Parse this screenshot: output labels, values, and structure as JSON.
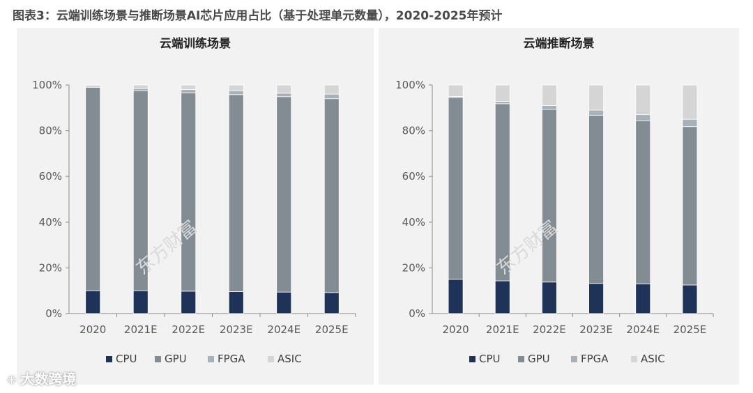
{
  "figure_title": "图表3：云端训练场景与推断场景AI芯片应用占比（基于处理单元数量），2020-2025年预计",
  "watermark": "东方财富",
  "footer_brand": "大数跨境",
  "chart_data": [
    {
      "type": "bar",
      "stacked": true,
      "title": "云端训练场景",
      "categories": [
        "2020",
        "2021E",
        "2022E",
        "2023E",
        "2024E",
        "2025E"
      ],
      "yticks": [
        "0%",
        "20%",
        "40%",
        "60%",
        "80%",
        "100%"
      ],
      "ylim": [
        0,
        100
      ],
      "series": [
        {
          "name": "CPU",
          "color": "#1f3257",
          "values": [
            10,
            10,
            9.8,
            9.6,
            9.4,
            9.2
          ]
        },
        {
          "name": "GPU",
          "color": "#848c93",
          "values": [
            89,
            87.5,
            86.8,
            86.2,
            85.5,
            84.8
          ]
        },
        {
          "name": "FPGA",
          "color": "#a9b1b8",
          "values": [
            0.5,
            1,
            1.4,
            1.7,
            1.5,
            2
          ]
        },
        {
          "name": "ASIC",
          "color": "#d5d5d5",
          "values": [
            0.5,
            1.5,
            2,
            2.5,
            3.6,
            4
          ]
        }
      ],
      "legend": "bottom"
    },
    {
      "type": "bar",
      "stacked": true,
      "title": "云端推断场景",
      "categories": [
        "2020",
        "2021E",
        "2022E",
        "2023E",
        "2024E",
        "2025E"
      ],
      "yticks": [
        "0%",
        "20%",
        "40%",
        "60%",
        "80%",
        "100%"
      ],
      "ylim": [
        0,
        100
      ],
      "series": [
        {
          "name": "CPU",
          "color": "#1f3257",
          "values": [
            15,
            14.3,
            13.8,
            13.2,
            13,
            12.5
          ]
        },
        {
          "name": "GPU",
          "color": "#848c93",
          "values": [
            79.5,
            77.5,
            75.5,
            73.6,
            71.4,
            69.3
          ]
        },
        {
          "name": "FPGA",
          "color": "#a9b1b8",
          "values": [
            0.5,
            1,
            1.7,
            2.2,
            2.6,
            3.2
          ]
        },
        {
          "name": "ASIC",
          "color": "#d5d5d5",
          "values": [
            5,
            7.2,
            9,
            11,
            13,
            15
          ]
        }
      ],
      "legend": "bottom"
    }
  ]
}
